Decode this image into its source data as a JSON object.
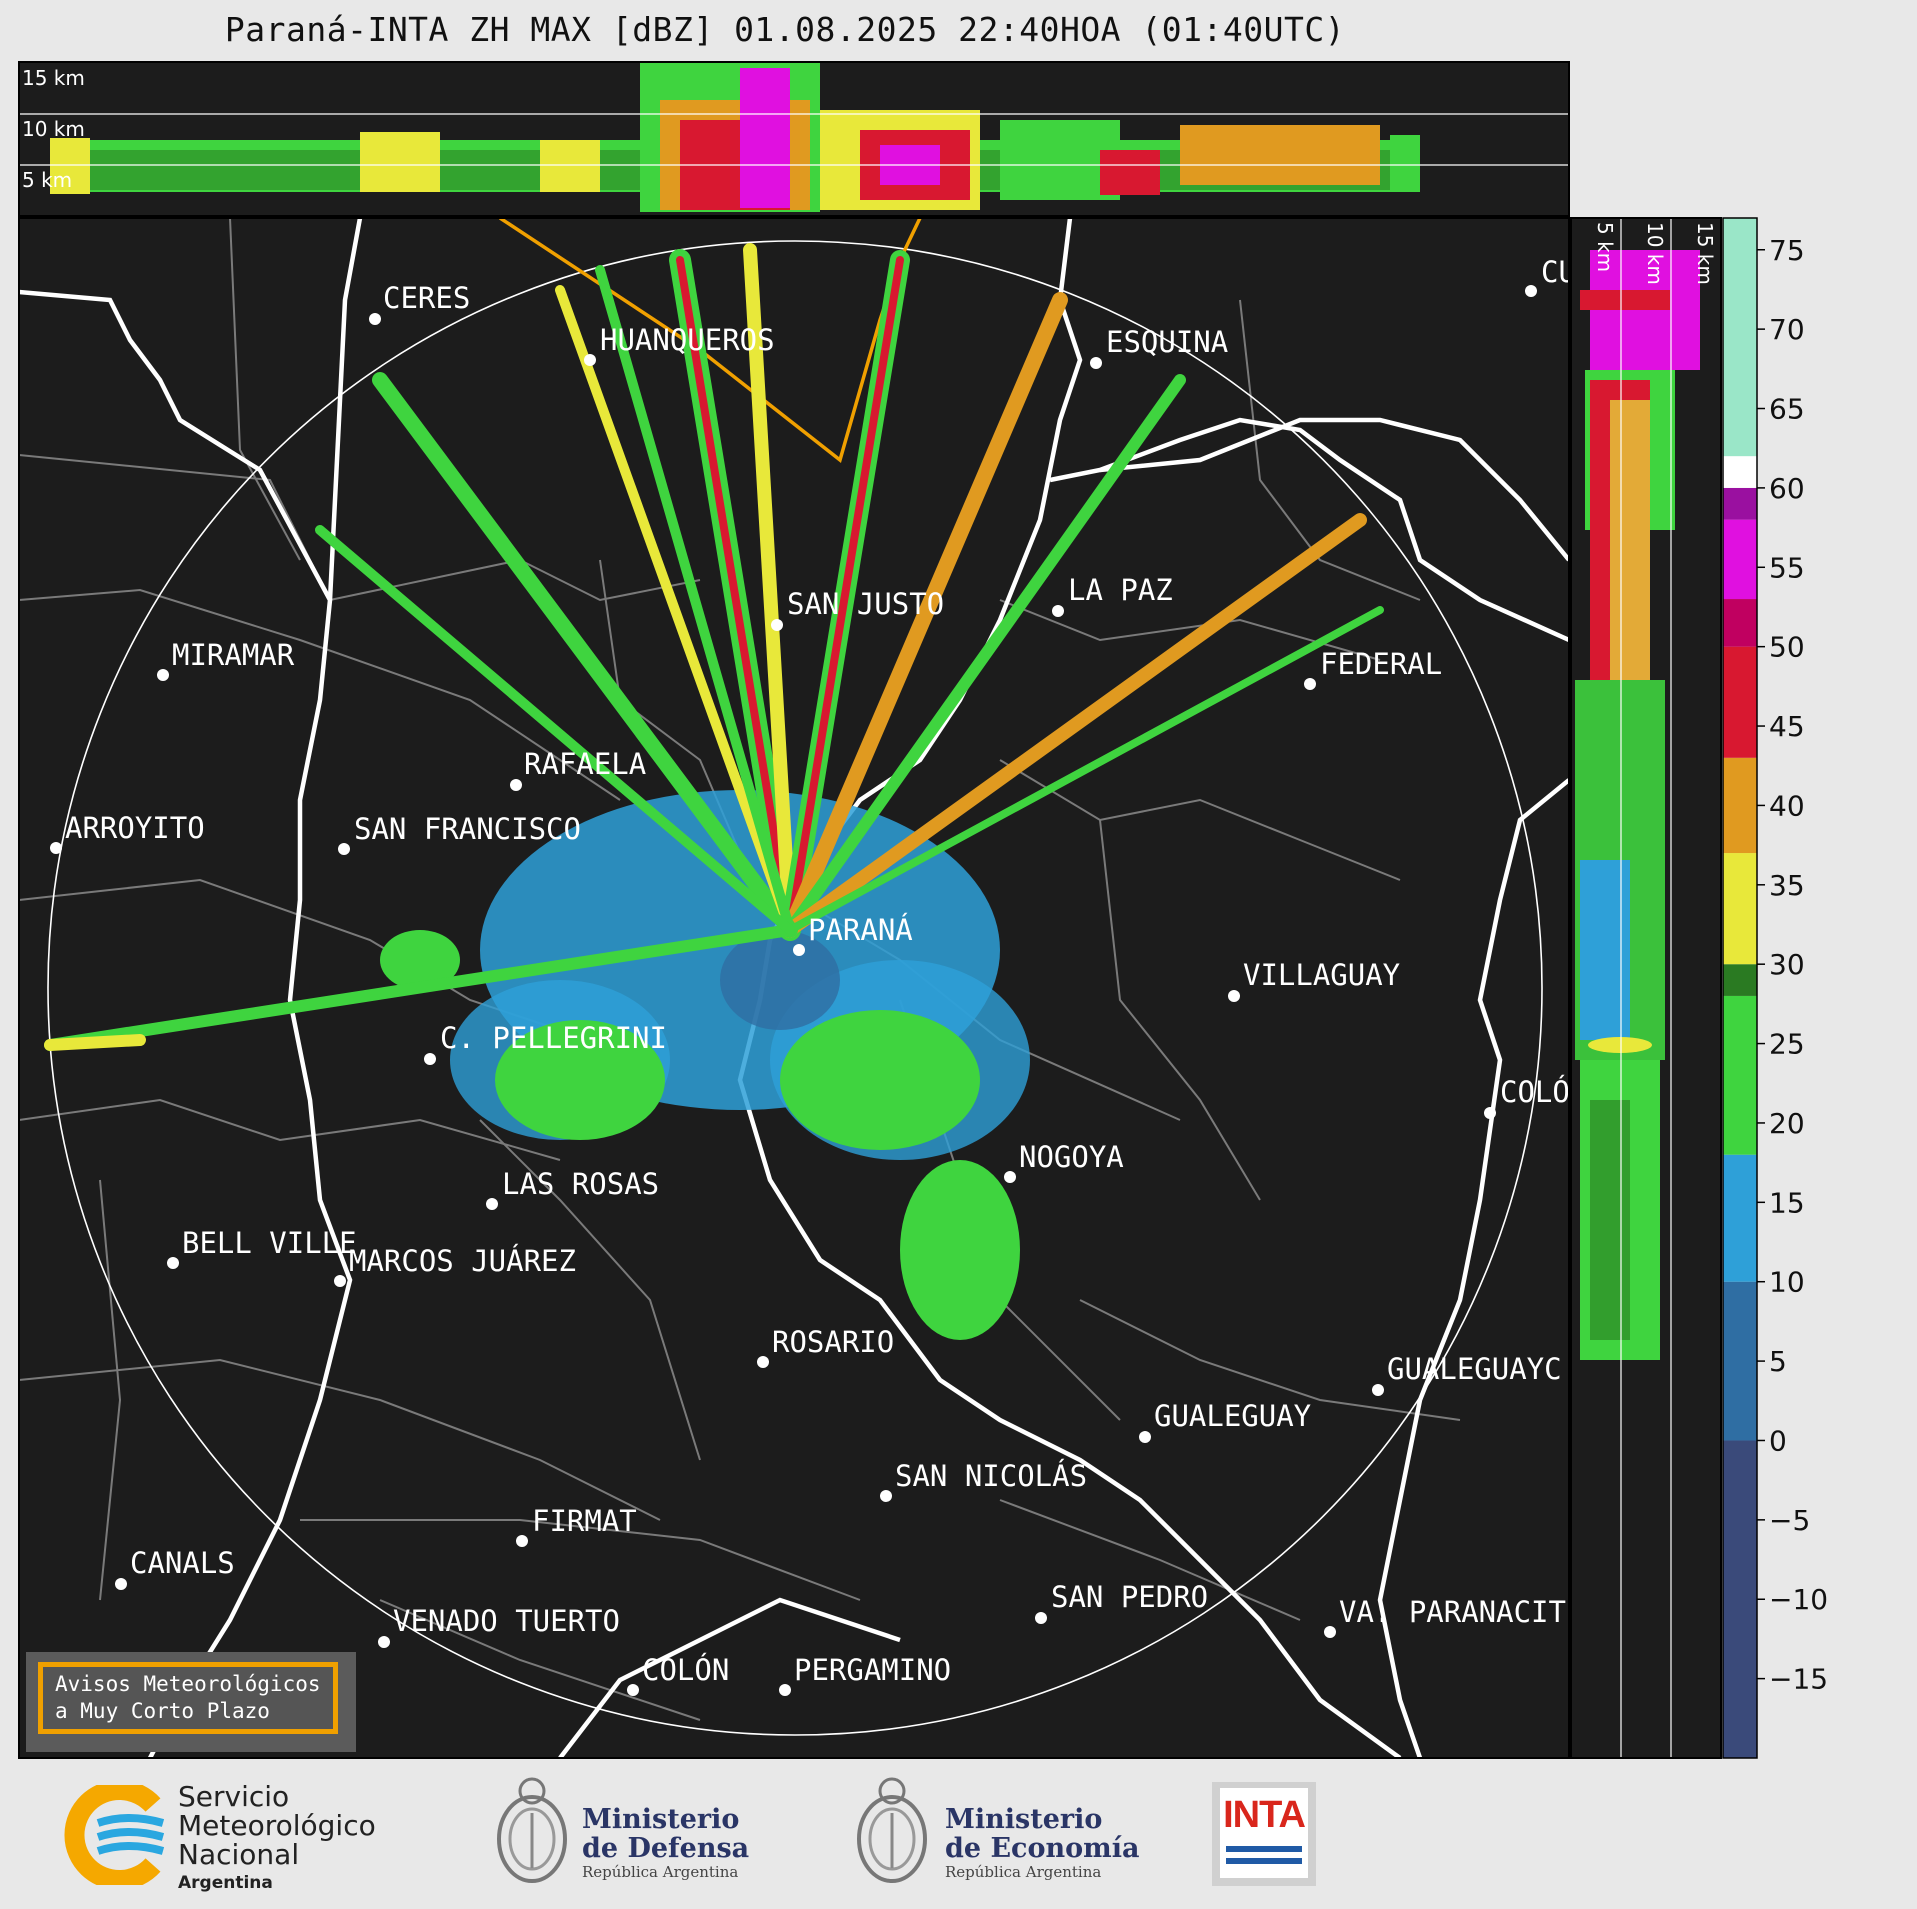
{
  "header": {
    "title": "Paraná-INTA ZH MAX [dBZ] 01.08.2025 22:40HOA (01:40UTC)"
  },
  "top_panel": {
    "height_labels": [
      "15 km",
      "10 km",
      "5 km"
    ]
  },
  "side_panel": {
    "height_labels": [
      "5 km",
      "10 km",
      "15 km"
    ]
  },
  "cities": [
    {
      "name": "CERES"
    },
    {
      "name": "HUANQUEROS"
    },
    {
      "name": "ESQUINA"
    },
    {
      "name": "CU"
    },
    {
      "name": "SAN JUSTO"
    },
    {
      "name": "LA PAZ"
    },
    {
      "name": "FEDERAL"
    },
    {
      "name": "MIRAMAR"
    },
    {
      "name": "RAFAELA"
    },
    {
      "name": "ARROYITO"
    },
    {
      "name": "SAN FRANCISCO"
    },
    {
      "name": "PARANÁ"
    },
    {
      "name": "VILLAGUAY"
    },
    {
      "name": "C. PELLEGRINI"
    },
    {
      "name": "COLÓ"
    },
    {
      "name": "NOGOYA"
    },
    {
      "name": "LAS ROSAS"
    },
    {
      "name": "BELL VILLE"
    },
    {
      "name": "MARCOS JUÁREZ"
    },
    {
      "name": "ROSARIO"
    },
    {
      "name": "GUALEGUAYC"
    },
    {
      "name": "GUALEGUAY"
    },
    {
      "name": "SAN NICOLÁS"
    },
    {
      "name": "FIRMAT"
    },
    {
      "name": "CANALS"
    },
    {
      "name": "SAN PEDRO"
    },
    {
      "name": "VENADO TUERTO"
    },
    {
      "name": "VA. PARANACIT"
    },
    {
      "name": "COLÓN"
    },
    {
      "name": "PERGAMINO"
    }
  ],
  "colorbar": {
    "unit": "dBZ",
    "ticks": [
      "75",
      "70",
      "65",
      "60",
      "55",
      "50",
      "45",
      "40",
      "35",
      "30",
      "25",
      "20",
      "15",
      "10",
      "5",
      "0",
      "−5",
      "−10",
      "−15"
    ],
    "tick_values": [
      75,
      70,
      65,
      60,
      55,
      50,
      45,
      40,
      35,
      30,
      25,
      20,
      15,
      10,
      5,
      0,
      -5,
      -10,
      -15
    ],
    "range": [
      -20,
      77
    ],
    "bands": [
      {
        "from": -20,
        "to": 0,
        "color": "#3a4a7a"
      },
      {
        "from": 0,
        "to": 10,
        "color": "#2f6ea3"
      },
      {
        "from": 10,
        "to": 18,
        "color": "#2ea0d8"
      },
      {
        "from": 18,
        "to": 28,
        "color": "#3fd43f"
      },
      {
        "from": 28,
        "to": 30,
        "color": "#2a7a22"
      },
      {
        "from": 30,
        "to": 37,
        "color": "#e8e83a"
      },
      {
        "from": 37,
        "to": 43,
        "color": "#e09a20"
      },
      {
        "from": 43,
        "to": 50,
        "color": "#d81830"
      },
      {
        "from": 50,
        "to": 53,
        "color": "#c00060"
      },
      {
        "from": 53,
        "to": 58,
        "color": "#e010e0"
      },
      {
        "from": 58,
        "to": 60,
        "color": "#9a10a0"
      },
      {
        "from": 60,
        "to": 62,
        "color": "#ffffff"
      },
      {
        "from": 62,
        "to": 77,
        "color": "#9ae6c8"
      }
    ]
  },
  "legend_box": {
    "line1": "Avisos Meteorológicos",
    "line2": "a Muy Corto Plazo"
  },
  "footer": {
    "smn": {
      "line1": "Servicio",
      "line2": "Meteorológico",
      "line3": "Nacional",
      "line4": "Argentina"
    },
    "defensa": {
      "line1": "Ministerio",
      "line2": "de Defensa",
      "sub": "República Argentina"
    },
    "economia": {
      "line1": "Ministerio",
      "line2": "de Economía",
      "sub": "República Argentina"
    },
    "inta": {
      "label": "INTA"
    }
  },
  "colors": {
    "map_bg": "#1c1c1c",
    "border_white": "#ffffff",
    "border_gray": "#7a7a7a",
    "warning_orange": "#f0a000"
  }
}
